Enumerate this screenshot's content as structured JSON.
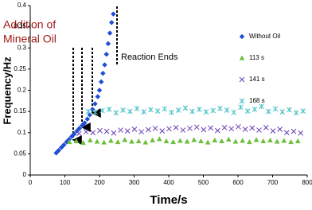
{
  "chart_data": {
    "type": "scatter",
    "xlabel": "Time/s",
    "ylabel": "Frequency/Hz",
    "xlim": [
      0,
      800
    ],
    "xticks": [
      0,
      100,
      200,
      300,
      400,
      500,
      600,
      700,
      800
    ],
    "ylim": [
      0,
      0.4
    ],
    "yticks": [
      0,
      0.05,
      0.1,
      0.15,
      0.2,
      0.25,
      0.3,
      0.35,
      0.4
    ],
    "grid": false,
    "legend": "right",
    "annotations": [
      "Addition of",
      "Mineral Oil",
      "Reaction Ends"
    ],
    "series": [
      {
        "name": "Without Oil",
        "color": "#1f4fd6",
        "marker": "diamond",
        "x": [
          75,
          82,
          90,
          97,
          105,
          112,
          120,
          127,
          135,
          142,
          150,
          157,
          165,
          172,
          180,
          187,
          195,
          200,
          205,
          210,
          215,
          220,
          225,
          230,
          235,
          240
        ],
        "values": [
          0.052,
          0.058,
          0.065,
          0.071,
          0.078,
          0.084,
          0.091,
          0.097,
          0.104,
          0.11,
          0.117,
          0.123,
          0.132,
          0.142,
          0.155,
          0.168,
          0.185,
          0.2,
          0.22,
          0.24,
          0.26,
          0.285,
          0.31,
          0.335,
          0.36,
          0.38
        ]
      },
      {
        "name": "113 s",
        "color": "#6cbf3c",
        "marker": "triangle",
        "x": [
          113,
          133,
          153,
          173,
          193,
          213,
          233,
          253,
          273,
          293,
          313,
          333,
          353,
          373,
          393,
          413,
          433,
          453,
          473,
          493,
          513,
          533,
          553,
          573,
          593,
          613,
          633,
          653,
          673,
          693,
          713,
          733,
          753,
          773
        ],
        "values": [
          0.078,
          0.08,
          0.076,
          0.082,
          0.079,
          0.077,
          0.081,
          0.078,
          0.083,
          0.079,
          0.08,
          0.077,
          0.082,
          0.085,
          0.08,
          0.078,
          0.081,
          0.079,
          0.083,
          0.08,
          0.077,
          0.082,
          0.08,
          0.084,
          0.079,
          0.081,
          0.078,
          0.083,
          0.08,
          0.082,
          0.079,
          0.081,
          0.078,
          0.08
        ]
      },
      {
        "name": "141 s",
        "color": "#6a3db8",
        "marker": "cross",
        "x": [
          141,
          161,
          181,
          201,
          221,
          241,
          261,
          281,
          301,
          321,
          341,
          361,
          381,
          401,
          421,
          441,
          461,
          481,
          501,
          521,
          541,
          561,
          581,
          601,
          621,
          641,
          661,
          681,
          701,
          721,
          741,
          761,
          781
        ],
        "values": [
          0.098,
          0.102,
          0.1,
          0.105,
          0.103,
          0.099,
          0.106,
          0.104,
          0.108,
          0.102,
          0.107,
          0.11,
          0.104,
          0.109,
          0.112,
          0.106,
          0.11,
          0.113,
          0.107,
          0.111,
          0.105,
          0.112,
          0.109,
          0.114,
          0.108,
          0.111,
          0.106,
          0.112,
          0.104,
          0.108,
          0.1,
          0.103,
          0.099
        ]
      },
      {
        "name": "168 s",
        "color": "#4fc3c9",
        "marker": "star",
        "x": [
          168,
          188,
          208,
          228,
          248,
          268,
          288,
          308,
          328,
          348,
          368,
          388,
          408,
          428,
          448,
          468,
          488,
          508,
          528,
          548,
          568,
          588,
          608,
          628,
          648,
          668,
          688,
          708,
          728,
          748,
          768,
          788
        ],
        "values": [
          0.15,
          0.148,
          0.152,
          0.155,
          0.147,
          0.153,
          0.15,
          0.157,
          0.149,
          0.154,
          0.151,
          0.156,
          0.148,
          0.153,
          0.158,
          0.15,
          0.155,
          0.149,
          0.152,
          0.157,
          0.153,
          0.148,
          0.16,
          0.151,
          0.155,
          0.162,
          0.15,
          0.156,
          0.149,
          0.154,
          0.147,
          0.151
        ]
      }
    ]
  }
}
